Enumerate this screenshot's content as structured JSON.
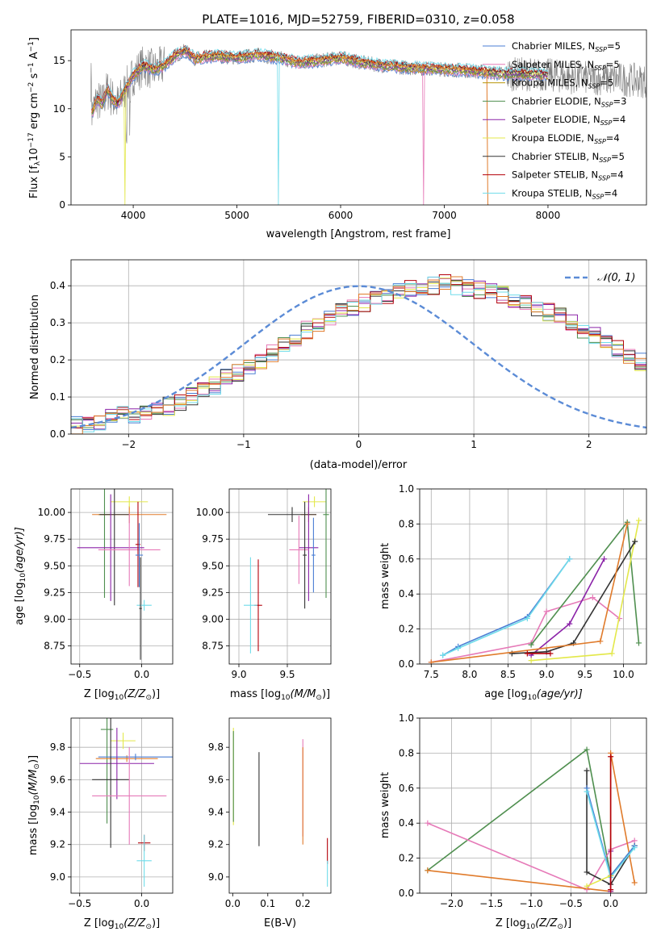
{
  "colors": [
    "#4a7ed4",
    "#e67ab8",
    "#b8960a",
    "#4f8f4f",
    "#8b22a8",
    "#e3e84a",
    "#333333",
    "#b3000a",
    "#6fdcea",
    "#e07b2b"
  ],
  "spectrum_color": "#7f7f7f",
  "chart_data": [
    {
      "id": "spectrum",
      "type": "line",
      "title": "PLATE=1016, MJD=52759, FIBERID=0310, z=0.058",
      "xlabel": "wavelength [Angstrom, rest frame]",
      "ylabel_parts": [
        "Flux [f",
        "λ",
        "10",
        "−17",
        " erg cm",
        "−2",
        " s",
        "−1",
        " A",
        "−1",
        "]"
      ],
      "xlim": [
        3400,
        8950
      ],
      "ylim": [
        0,
        18.2
      ],
      "xticks": [
        "4000",
        "5000",
        "6000",
        "7000",
        "8000"
      ],
      "xtick_values": [
        4000,
        5000,
        6000,
        7000,
        8000
      ],
      "yticks": [
        "0",
        "5",
        "10",
        "15"
      ],
      "ytick_values": [
        0,
        5,
        10,
        15
      ],
      "grid": false,
      "legend_position": "top-right",
      "continuum_x": [
        3600,
        3650,
        3700,
        3750,
        3800,
        3850,
        3900,
        3950,
        4000,
        4100,
        4200,
        4300,
        4400,
        4500,
        4600,
        4800,
        5000,
        5200,
        5400,
        5600,
        5800,
        6000,
        6200,
        6400,
        6600,
        6800,
        7000,
        7200,
        7400,
        7600,
        7800,
        8000,
        8200,
        8400,
        8600,
        8800,
        8900
      ],
      "continuum_y": [
        9.5,
        11,
        10.5,
        12,
        11,
        10.5,
        11.5,
        12.5,
        13.5,
        14.5,
        14,
        14.5,
        15.5,
        16,
        15.2,
        15.5,
        15.3,
        15.6,
        15.3,
        14.8,
        15,
        15.3,
        14.8,
        14.5,
        14.3,
        14.2,
        14.1,
        14,
        13.8,
        13.6,
        13.6,
        13.5,
        13.3,
        13.2,
        13.1,
        13.0,
        12.9
      ],
      "series": [
        {
          "label": "Chabrier MILES, N",
          "sub": "SSP",
          "suffix": "=5"
        },
        {
          "label": "Salpeter MILES, N",
          "sub": "SSP",
          "suffix": "=5"
        },
        {
          "label": "Kroupa MILES, N",
          "sub": "SSP",
          "suffix": "=5"
        },
        {
          "label": "Chabrier ELODIE, N",
          "sub": "SSP",
          "suffix": "=3"
        },
        {
          "label": "Salpeter ELODIE, N",
          "sub": "SSP",
          "suffix": "=4"
        },
        {
          "label": "Kroupa ELODIE, N",
          "sub": "SSP",
          "suffix": "=4"
        },
        {
          "label": "Chabrier STELIB, N",
          "sub": "SSP",
          "suffix": "=5"
        },
        {
          "label": "Salpeter STELIB, N",
          "sub": "SSP",
          "suffix": "=4"
        },
        {
          "label": "Kroupa STELIB, N",
          "sub": "SSP",
          "suffix": "=4"
        }
      ]
    },
    {
      "id": "residuals",
      "type": "histogram",
      "xlabel": "(data-model)/error",
      "ylabel": "Normed distribution",
      "xlim": [
        -2.5,
        2.5
      ],
      "ylim": [
        0,
        0.47
      ],
      "xticks": [
        "−2",
        "−1",
        "0",
        "1",
        "2"
      ],
      "xtick_values": [
        -2,
        -1,
        0,
        1,
        2
      ],
      "yticks": [
        "0.0",
        "0.1",
        "0.2",
        "0.3",
        "0.4"
      ],
      "ytick_values": [
        0,
        0.1,
        0.2,
        0.3,
        0.4
      ],
      "grid": true,
      "bin_width": 0.1,
      "bin_start": -2.5,
      "base_counts": [
        0.025,
        0.03,
        0.035,
        0.045,
        0.05,
        0.05,
        0.06,
        0.065,
        0.075,
        0.085,
        0.1,
        0.115,
        0.13,
        0.15,
        0.165,
        0.18,
        0.2,
        0.22,
        0.24,
        0.26,
        0.28,
        0.3,
        0.315,
        0.33,
        0.34,
        0.355,
        0.365,
        0.375,
        0.385,
        0.39,
        0.395,
        0.4,
        0.405,
        0.4,
        0.395,
        0.39,
        0.385,
        0.375,
        0.365,
        0.355,
        0.34,
        0.33,
        0.315,
        0.3,
        0.28,
        0.265,
        0.245,
        0.23,
        0.21,
        0.195,
        0.175,
        0.16,
        0.14,
        0.125,
        0.11,
        0.1,
        0.085,
        0.075,
        0.065,
        0.055,
        0.05,
        0.045,
        0.04,
        0.035,
        0.03,
        0.028,
        0.025,
        0.022,
        0.02,
        0.018
      ],
      "reference_label": "𝒩(0, 1)",
      "legend_position": "top-right"
    },
    {
      "id": "age-vs-Z",
      "type": "errorbar",
      "xlabel_parts": [
        "Z [log",
        "10",
        "(Z/Z",
        "⊙",
        ")]"
      ],
      "ylabel_parts": [
        "age  [log",
        "10",
        "(age/yr)]"
      ],
      "xlim": [
        -0.57,
        0.25
      ],
      "ylim": [
        8.58,
        10.22
      ],
      "xticks": [
        "−0.5",
        "0.0"
      ],
      "xtick_values": [
        -0.5,
        0.0
      ],
      "yticks": [
        "8.75",
        "9.00",
        "9.25",
        "9.50",
        "9.75",
        "10.00"
      ],
      "ytick_values": [
        8.75,
        9.0,
        9.25,
        9.5,
        9.75,
        10.0
      ],
      "grid": true,
      "points": [
        {
          "c": 3,
          "x": -0.3,
          "y": 9.98,
          "xe": 0.05,
          "ye": 0.78
        },
        {
          "c": 9,
          "x": -0.1,
          "y": 9.98,
          "xe": 0.3,
          "ye": 0.08
        },
        {
          "c": 5,
          "x": -0.1,
          "y": 10.1,
          "xe": 0.15,
          "ye": 0.05
        },
        {
          "c": 6,
          "x": -0.22,
          "y": 9.98,
          "xe": 0.12,
          "ye": 0.85
        },
        {
          "c": 4,
          "x": -0.25,
          "y": 9.67,
          "xe": 0.27,
          "ye": 0.5
        },
        {
          "c": 1,
          "x": -0.1,
          "y": 9.65,
          "xe": 0.25,
          "ye": 0.34
        },
        {
          "c": 7,
          "x": -0.03,
          "y": 9.7,
          "xe": 0.02,
          "ye": 0.4
        },
        {
          "c": 0,
          "x": -0.02,
          "y": 9.6,
          "xe": 0.03,
          "ye": 0.3
        },
        {
          "c": 8,
          "x": 0.02,
          "y": 9.13,
          "xe": 0.06,
          "ye": 0.05
        },
        {
          "c": 6,
          "x": -0.01,
          "y": 9.1,
          "xe": 0.01,
          "ye": 0.48
        }
      ]
    },
    {
      "id": "age-vs-mass",
      "type": "errorbar",
      "xlabel_parts": [
        "mass [log",
        "10",
        "(M/M",
        "⊙",
        ")]"
      ],
      "xlim": [
        8.9,
        9.95
      ],
      "ylim": [
        8.58,
        10.22
      ],
      "xticks": [
        "9.0",
        "9.5"
      ],
      "xtick_values": [
        9.0,
        9.5
      ],
      "yticks": [
        "8.75",
        "9.00",
        "9.25",
        "9.50",
        "9.75",
        "10.00"
      ],
      "ytick_values": [
        8.75,
        9.0,
        9.25,
        9.5,
        9.75,
        10.0
      ],
      "grid": true,
      "points": [
        {
          "c": 5,
          "x": 9.78,
          "y": 10.1,
          "xe": 0.12,
          "ye": 0.05
        },
        {
          "c": 9,
          "x": 9.72,
          "y": 9.98,
          "xe": 0.08,
          "ye": 0.07
        },
        {
          "c": 6,
          "x": 9.55,
          "y": 9.98,
          "xe": 0.25,
          "ye": 0.07
        },
        {
          "c": 3,
          "x": 9.9,
          "y": 9.98,
          "xe": 0.03,
          "ye": 0.78
        },
        {
          "c": 4,
          "x": 9.72,
          "y": 9.67,
          "xe": 0.1,
          "ye": 0.5
        },
        {
          "c": 1,
          "x": 9.62,
          "y": 9.65,
          "xe": 0.1,
          "ye": 0.32
        },
        {
          "c": 6,
          "x": 9.68,
          "y": 9.6,
          "xe": 0.02,
          "ye": 0.5
        },
        {
          "c": 0,
          "x": 9.77,
          "y": 9.6,
          "xe": 0.02,
          "ye": 0.35
        },
        {
          "c": 7,
          "x": 9.2,
          "y": 9.13,
          "xe": 0.04,
          "ye": 0.43
        },
        {
          "c": 8,
          "x": 9.12,
          "y": 9.13,
          "xe": 0.07,
          "ye": 0.45
        }
      ]
    },
    {
      "id": "mass-weight-vs-age",
      "type": "line",
      "xlabel_parts": [
        "age  [log",
        "10",
        "(age/yr)]"
      ],
      "ylabel": "mass weight",
      "xlim": [
        7.35,
        10.3
      ],
      "ylim": [
        0,
        1.0
      ],
      "xticks": [
        "7.5",
        "8.0",
        "8.5",
        "9.0",
        "9.5",
        "10.0"
      ],
      "xtick_values": [
        7.5,
        8.0,
        8.5,
        9.0,
        9.5,
        10.0
      ],
      "yticks": [
        "0.0",
        "0.2",
        "0.4",
        "0.6",
        "0.8",
        "1.0"
      ],
      "ytick_values": [
        0,
        0.2,
        0.4,
        0.6,
        0.8,
        1.0
      ],
      "grid": true,
      "series": [
        {
          "c": 0,
          "x": [
            7.65,
            7.85,
            8.75,
            9.3
          ],
          "y": [
            0.05,
            0.1,
            0.27,
            0.6
          ]
        },
        {
          "c": 8,
          "x": [
            7.65,
            7.85,
            8.75,
            9.3
          ],
          "y": [
            0.05,
            0.09,
            0.26,
            0.6
          ]
        },
        {
          "c": 1,
          "x": [
            7.5,
            8.8,
            9.0,
            9.6,
            9.95
          ],
          "y": [
            0.01,
            0.12,
            0.3,
            0.38,
            0.26
          ]
        },
        {
          "c": 3,
          "x": [
            8.8,
            10.05,
            10.2
          ],
          "y": [
            0.11,
            0.81,
            0.12
          ]
        },
        {
          "c": 4,
          "x": [
            8.8,
            9.3,
            9.75
          ],
          "y": [
            0.05,
            0.23,
            0.6
          ]
        },
        {
          "c": 5,
          "x": [
            8.8,
            9.85,
            10.2
          ],
          "y": [
            0.02,
            0.06,
            0.82
          ]
        },
        {
          "c": 6,
          "x": [
            8.55,
            9.0,
            9.35,
            10.15
          ],
          "y": [
            0.06,
            0.07,
            0.12,
            0.7
          ]
        },
        {
          "c": 9,
          "x": [
            7.5,
            9.7,
            10.05
          ],
          "y": [
            0.01,
            0.13,
            0.8
          ]
        },
        {
          "c": 7,
          "x": [
            8.75,
            9.05
          ],
          "y": [
            0.06,
            0.06
          ]
        }
      ]
    },
    {
      "id": "mass-vs-Z",
      "type": "errorbar",
      "xlabel_parts": [
        "Z [log",
        "10",
        "(Z/Z",
        "⊙",
        ")]"
      ],
      "ylabel_parts": [
        "mass [log",
        "10",
        "(M/M",
        "⊙",
        ")]"
      ],
      "xlim": [
        -0.57,
        0.25
      ],
      "ylim": [
        8.9,
        9.98
      ],
      "xticks": [
        "−0.5",
        "0.0"
      ],
      "xtick_values": [
        -0.5,
        0.0
      ],
      "yticks": [
        "9.0",
        "9.2",
        "9.4",
        "9.6",
        "9.8"
      ],
      "ytick_values": [
        9.0,
        9.2,
        9.4,
        9.6,
        9.8
      ],
      "grid": true,
      "points": [
        {
          "c": 3,
          "x": -0.28,
          "y": 9.91,
          "xe": 0.05,
          "ye": 0.58
        },
        {
          "c": 5,
          "x": -0.15,
          "y": 9.84,
          "xe": 0.1,
          "ye": 0.05
        },
        {
          "c": 9,
          "x": -0.12,
          "y": 9.73,
          "xe": 0.25,
          "ye": 0.02
        },
        {
          "c": 0,
          "x": -0.05,
          "y": 9.74,
          "xe": 0.3,
          "ye": 0.02
        },
        {
          "c": 4,
          "x": -0.2,
          "y": 9.7,
          "xe": 0.3,
          "ye": 0.22
        },
        {
          "c": 6,
          "x": -0.25,
          "y": 9.6,
          "xe": 0.15,
          "ye": 0.42
        },
        {
          "c": 1,
          "x": -0.1,
          "y": 9.5,
          "xe": 0.3,
          "ye": 0.3
        },
        {
          "c": 7,
          "x": 0.02,
          "y": 9.21,
          "xe": 0.05,
          "ye": 0.05
        },
        {
          "c": 8,
          "x": 0.02,
          "y": 9.1,
          "xe": 0.06,
          "ye": 0.16
        }
      ]
    },
    {
      "id": "mass-vs-EBV",
      "type": "errorbar",
      "xlabel": "E(B-V)",
      "xlim": [
        -0.01,
        0.28
      ],
      "ylim": [
        8.9,
        9.98
      ],
      "xticks": [
        "0.0",
        "0.1",
        "0.2"
      ],
      "xtick_values": [
        0.0,
        0.1,
        0.2
      ],
      "yticks": [
        "9.0",
        "9.2",
        "9.4",
        "9.6",
        "9.8"
      ],
      "ytick_values": [
        9.0,
        9.2,
        9.4,
        9.6,
        9.8
      ],
      "grid": false,
      "points": [
        {
          "c": 5,
          "x": 0.002,
          "y": 9.62,
          "xe": 0,
          "ye": 0.3
        },
        {
          "c": 3,
          "x": 0.002,
          "y": 9.62,
          "xe": 0,
          "ye": 0.28
        },
        {
          "c": 6,
          "x": 0.075,
          "y": 9.48,
          "xe": 0,
          "ye": 0.29
        },
        {
          "c": 1,
          "x": 0.2,
          "y": 9.55,
          "xe": 0,
          "ye": 0.3
        },
        {
          "c": 9,
          "x": 0.2,
          "y": 9.5,
          "xe": 0,
          "ye": 0.3
        },
        {
          "c": 7,
          "x": 0.27,
          "y": 9.16,
          "xe": 0,
          "ye": 0.08
        },
        {
          "c": 8,
          "x": 0.27,
          "y": 9.02,
          "xe": 0,
          "ye": 0.08
        }
      ]
    },
    {
      "id": "mass-weight-vs-Z",
      "type": "line",
      "xlabel_parts": [
        "Z [log",
        "10",
        "(Z/Z",
        "⊙",
        ")]"
      ],
      "ylabel": "mass weight",
      "xlim": [
        -2.4,
        0.45
      ],
      "ylim": [
        0,
        1.0
      ],
      "xticks": [
        "−2.0",
        "−1.5",
        "−1.0",
        "−0.5",
        "0.0"
      ],
      "xtick_values": [
        -2.0,
        -1.5,
        -1.0,
        -0.5,
        0.0
      ],
      "yticks": [
        "0.0",
        "0.2",
        "0.4",
        "0.6",
        "0.8",
        "1.0"
      ],
      "ytick_values": [
        0,
        0.2,
        0.4,
        0.6,
        0.8,
        1.0
      ],
      "grid": true,
      "series": [
        {
          "c": 3,
          "x": [
            -2.3,
            -0.3,
            0.0,
            0.3
          ],
          "y": [
            0.13,
            0.82,
            0.1,
            0.27
          ]
        },
        {
          "c": 1,
          "x": [
            -2.3,
            -0.3,
            0.0,
            0.3
          ],
          "y": [
            0.4,
            0.02,
            0.25,
            0.3
          ]
        },
        {
          "c": 9,
          "x": [
            -2.3,
            0.0,
            0.0,
            0.3
          ],
          "y": [
            0.13,
            0.01,
            0.8,
            0.06
          ]
        },
        {
          "c": 6,
          "x": [
            -0.3,
            -0.3,
            0.0,
            0.3
          ],
          "y": [
            0.7,
            0.12,
            0.05,
            0.27
          ]
        },
        {
          "c": 0,
          "x": [
            -0.3,
            0.0,
            0.3
          ],
          "y": [
            0.6,
            0.1,
            0.27
          ]
        },
        {
          "c": 8,
          "x": [
            -0.3,
            0.0,
            0.3
          ],
          "y": [
            0.58,
            0.09,
            0.26
          ]
        },
        {
          "c": 4,
          "x": [
            0.0,
            0.0
          ],
          "y": [
            0.24,
            0.01
          ]
        },
        {
          "c": 5,
          "x": [
            -0.3,
            0.0
          ],
          "y": [
            0.04,
            0.1
          ]
        },
        {
          "c": 7,
          "x": [
            0.0,
            0.0
          ],
          "y": [
            0.78,
            0.02
          ]
        }
      ]
    }
  ]
}
